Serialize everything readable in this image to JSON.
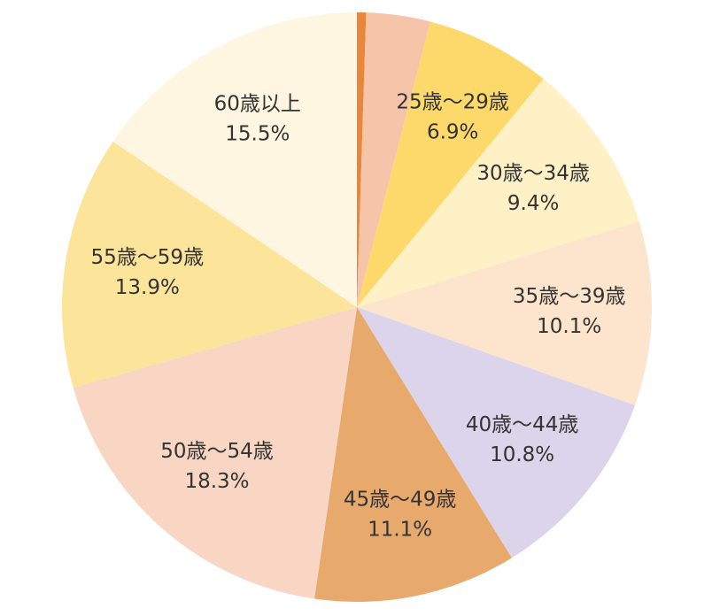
{
  "chart_data": {
    "type": "pie",
    "categories": [
      null,
      null,
      "25歳〜29歳",
      "30歳〜34歳",
      "35歳〜39歳",
      "40歳〜44歳",
      "45歳〜49歳",
      "50歳〜54歳",
      "55歳〜59歳",
      "60歳以上"
    ],
    "values": [
      0.5,
      3.5,
      6.9,
      9.4,
      10.1,
      10.8,
      11.1,
      18.3,
      13.9,
      15.5
    ],
    "value_labels": [
      null,
      null,
      "6.9%",
      "9.4%",
      "10.1%",
      "10.8%",
      "11.1%",
      "18.3%",
      "13.9%",
      "15.5%"
    ],
    "colors": [
      "#e8873a",
      "#f6c4a9",
      "#fdd96b",
      "#fff1c6",
      "#fde4cd",
      "#dcd4ea",
      "#e8a96d",
      "#f8d6c3",
      "#fde49b",
      "#fff6e1"
    ]
  }
}
